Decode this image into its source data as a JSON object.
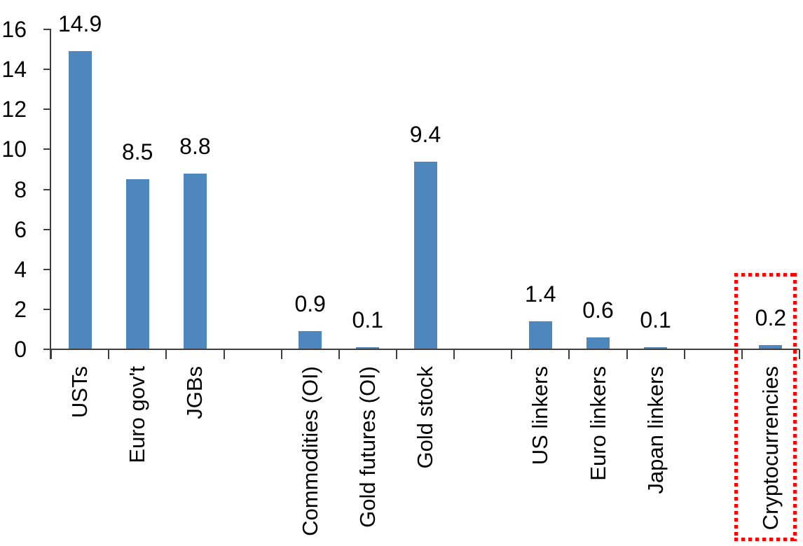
{
  "chart_data": {
    "type": "bar",
    "title": "",
    "xlabel": "",
    "ylabel": "",
    "categories": [
      "USTs",
      "Euro gov't",
      "JGBs",
      "Commodities (OI)",
      "Gold futures (OI)",
      "Gold stock",
      "US linkers",
      "Euro linkers",
      "Japan linkers",
      "Cryptocurrencies"
    ],
    "values": [
      14.9,
      8.5,
      8.8,
      0.9,
      0.1,
      9.4,
      1.4,
      0.6,
      0.1,
      0.2
    ],
    "slots": [
      0,
      1,
      2,
      4,
      5,
      6,
      8,
      9,
      10,
      12
    ],
    "total_slots": 13,
    "ylim": [
      0,
      16
    ],
    "yticks": [
      0,
      2,
      4,
      6,
      8,
      10,
      12,
      14,
      16
    ],
    "grid": false,
    "legend": false,
    "value_labels_shown": true,
    "x_labels_rotation_deg": -90,
    "colors": {
      "bar": "#4E87BE",
      "axis": "#3F3F3F",
      "text": "#000000"
    },
    "highlight": {
      "category": "Cryptocurrencies",
      "value": 0.2,
      "style": "dotted-box",
      "color": "#FF0000"
    }
  }
}
